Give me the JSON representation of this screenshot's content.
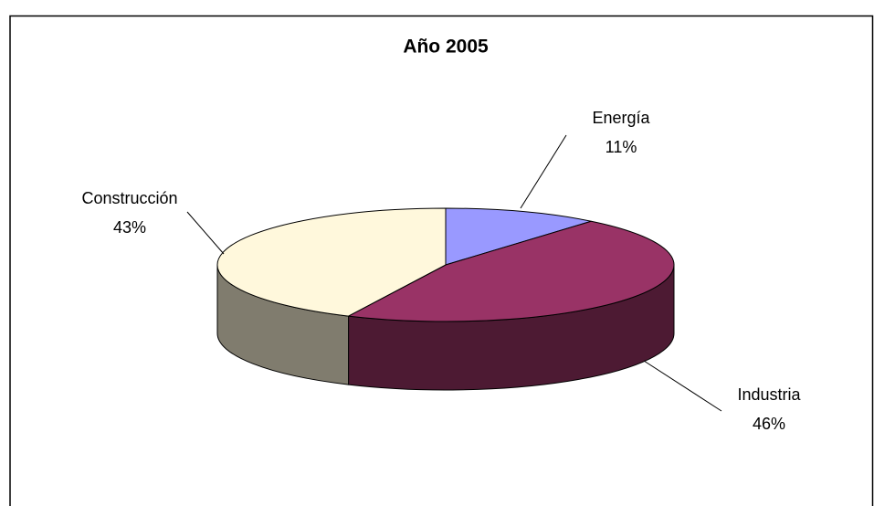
{
  "chart_data": {
    "type": "pie3d",
    "title": "Año 2005",
    "categories": [
      "Energía",
      "Industria",
      "Construcción"
    ],
    "values": [
      11,
      46,
      43
    ],
    "value_labels": [
      "11%",
      "46%",
      "43%"
    ],
    "colors": [
      "#9999ff",
      "#993366",
      "#fff8dc"
    ]
  }
}
